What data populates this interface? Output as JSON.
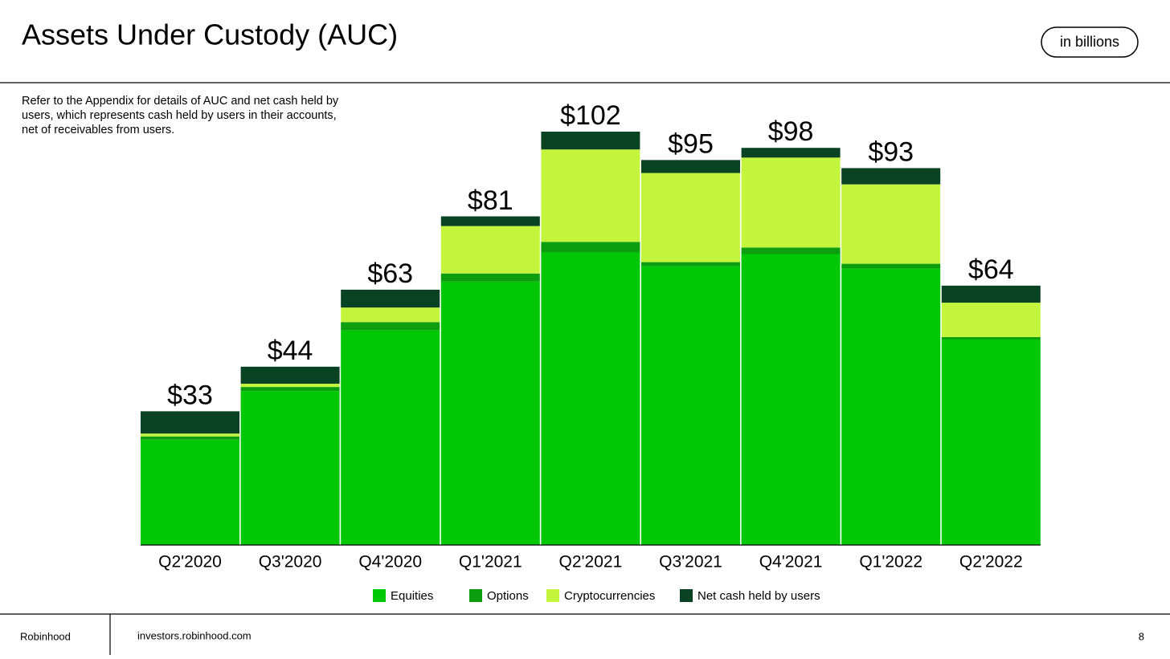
{
  "header": {
    "title": "Assets Under Custody (AUC)",
    "badge": "in billions"
  },
  "note": [
    "Refer to the Appendix for details of AUC and net cash held by",
    "users, which represents cash held by users in their accounts,",
    "net of receivables from users."
  ],
  "chart_data": {
    "type": "stacked_bar",
    "categories": [
      "Q2'2020",
      "Q3'2020",
      "Q4'2020",
      "Q1'2021",
      "Q2'2021",
      "Q3'2021",
      "Q4'2021",
      "Q1'2022",
      "Q2'2022"
    ],
    "series": [
      {
        "name": "Equities",
        "color": "#00c805",
        "values": [
          26,
          38,
          53,
          65,
          72.2,
          68.8,
          71.8,
          68.2,
          50.7
        ]
      },
      {
        "name": "Options",
        "color": "#0c9e0f",
        "values": [
          0.8,
          1,
          2,
          2,
          2.6,
          1,
          1.6,
          1.2,
          0.6
        ]
      },
      {
        "name": "Cryptocurrencies",
        "color": "#c3f53c",
        "values": [
          0.7,
          0.8,
          3.6,
          11.7,
          22.8,
          22,
          22.2,
          19.6,
          8.5
        ]
      },
      {
        "name": "Net cash held by users",
        "color": "#0a4323",
        "values": [
          5.5,
          4.2,
          4.4,
          2.4,
          4.4,
          3.2,
          2.4,
          4,
          4.2
        ]
      }
    ],
    "totals": [
      33,
      44,
      63,
      81,
      102,
      95,
      98,
      93,
      64
    ],
    "total_labels": [
      "$33",
      "$44",
      "$63",
      "$81",
      "$102",
      "$95",
      "$98",
      "$93",
      "$64"
    ],
    "legend": "bottom"
  },
  "footer": {
    "brand": "Robinhood",
    "url": "investors.robinhood.com",
    "page": "8"
  }
}
